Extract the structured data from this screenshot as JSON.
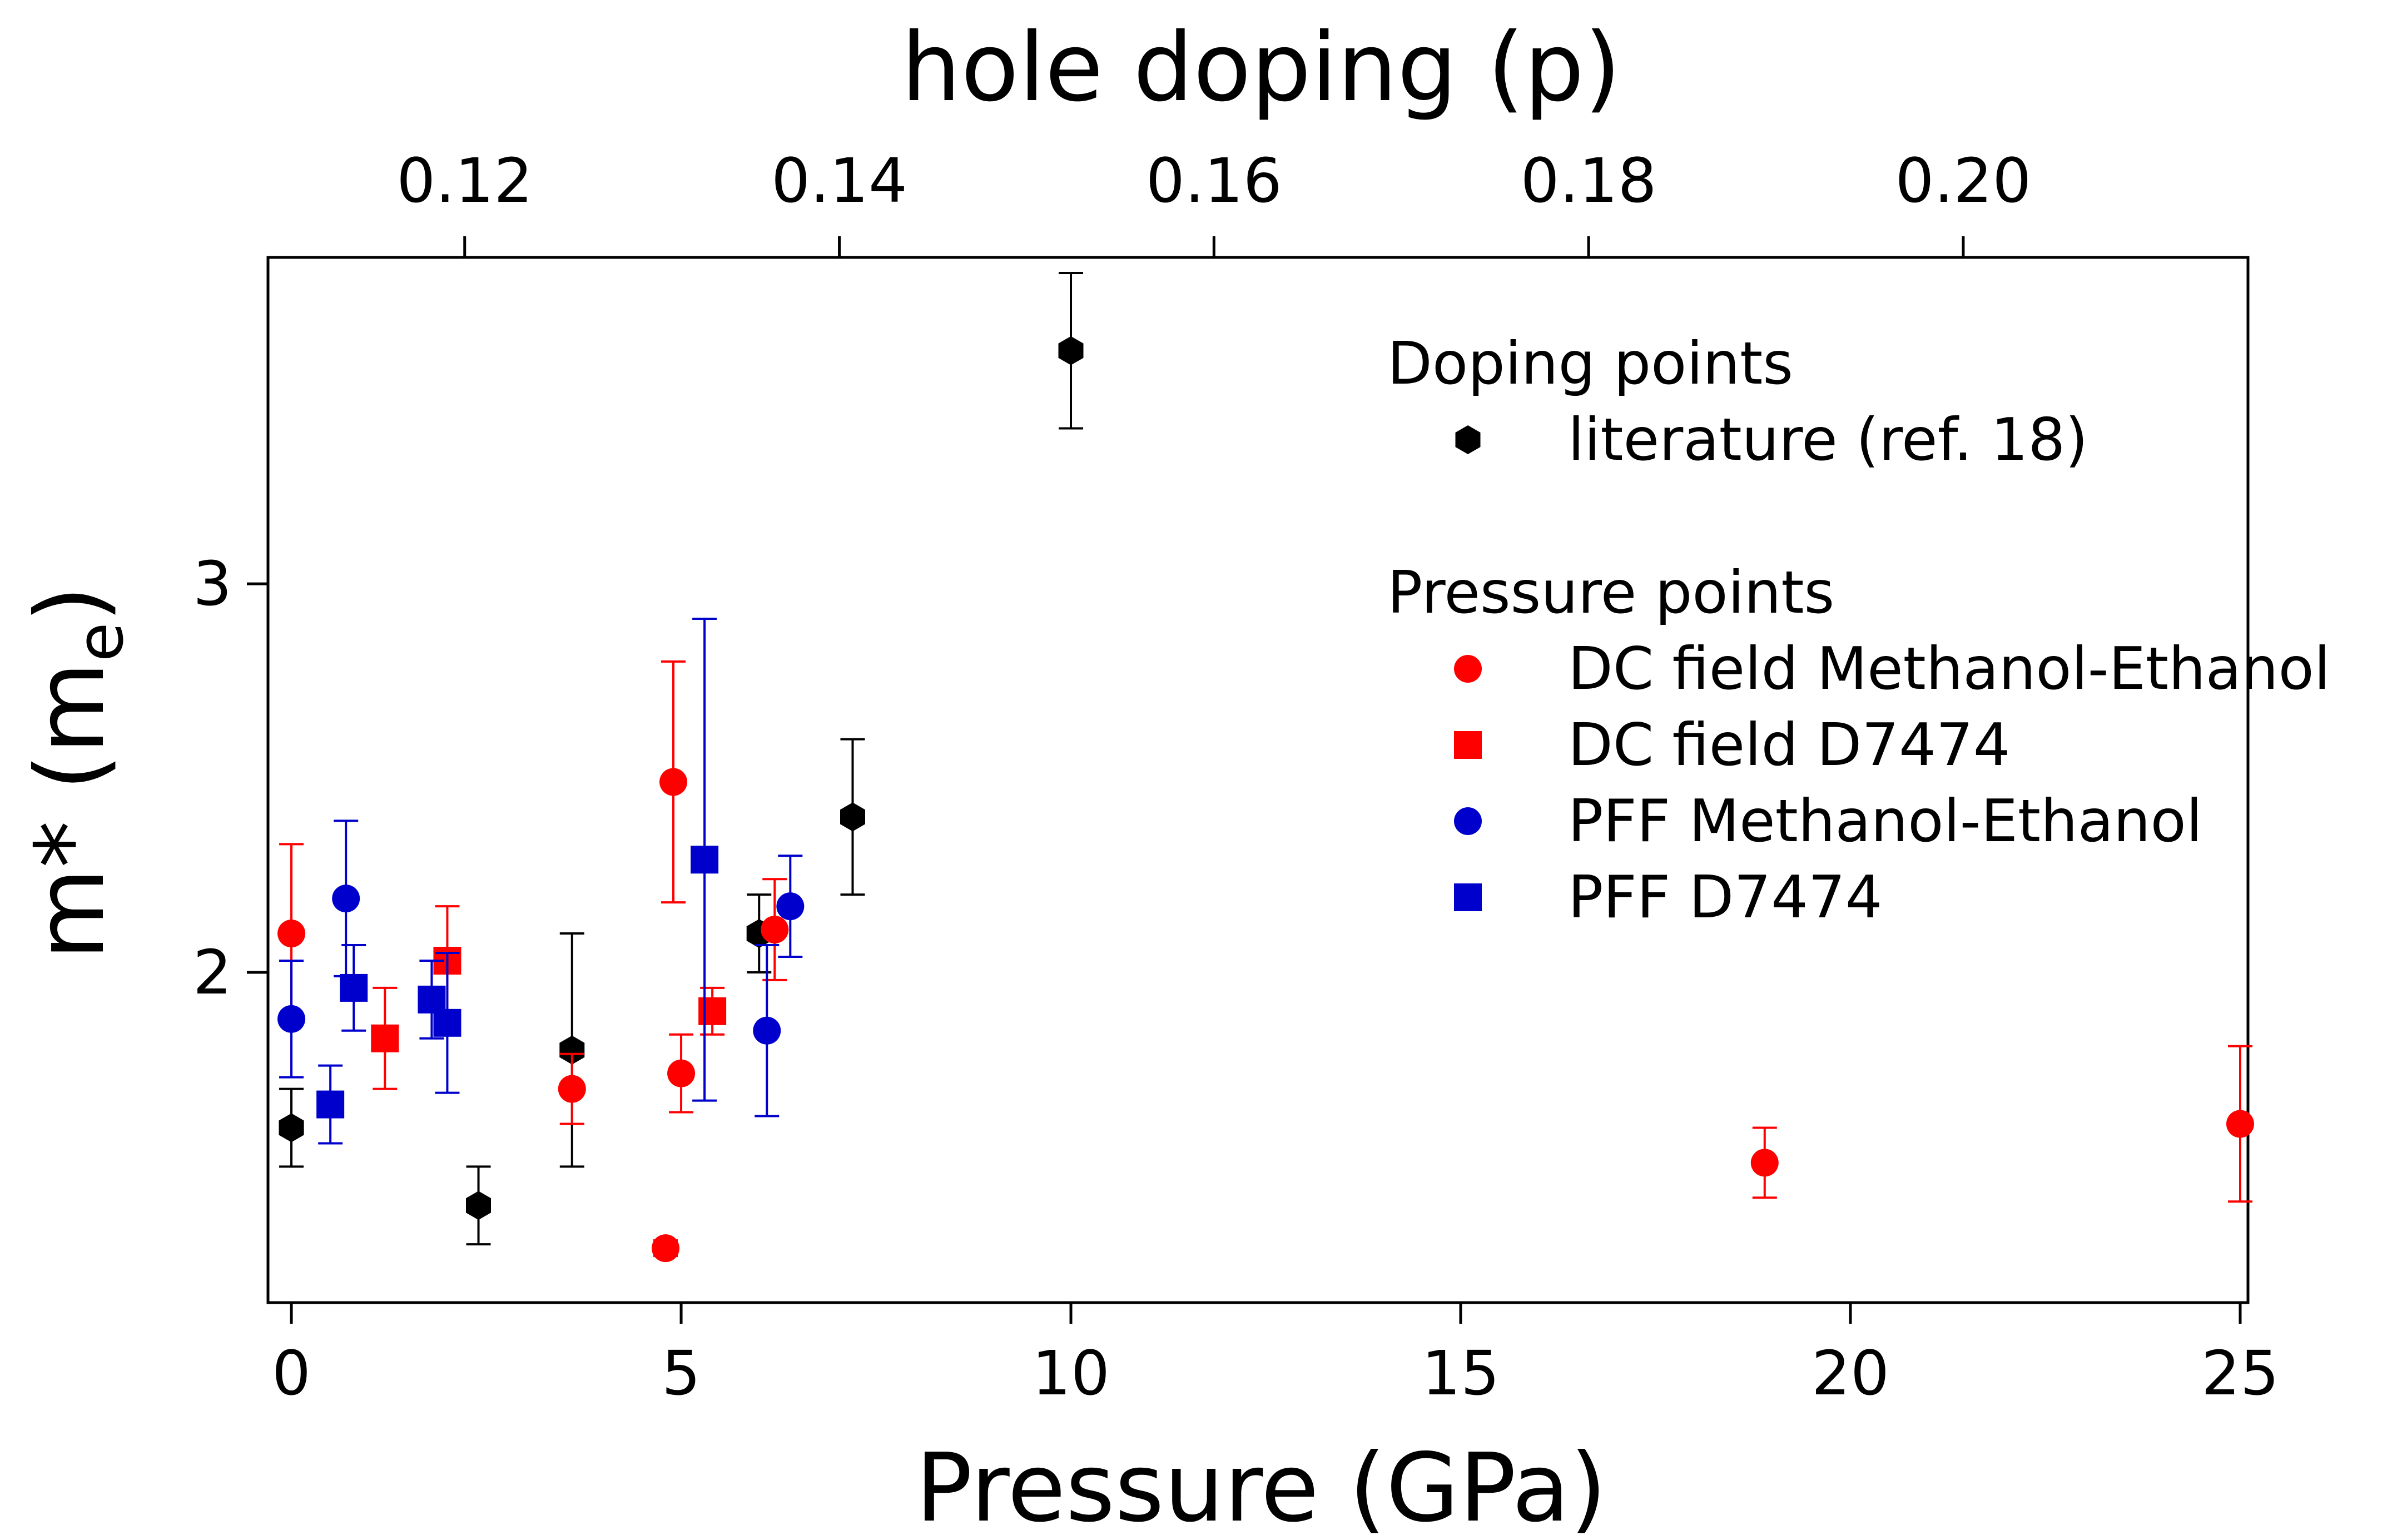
{
  "chart_data": {
    "type": "scatter",
    "title": "",
    "xlabel": "Pressure (GPa)",
    "ylabel": "m* (m",
    "ylabel_sub": "e",
    "ylabel_close": ")",
    "top_xlabel": "hole doping (p)",
    "xlim": [
      -0.3,
      25.1
    ],
    "ylim": [
      1.15,
      3.84
    ],
    "top_xlim": [
      0.1095,
      0.2152
    ],
    "x_ticks": [
      0,
      5,
      10,
      15,
      20,
      25
    ],
    "x_tick_labels": [
      "0",
      "5",
      "10",
      "15",
      "20",
      "25"
    ],
    "top_ticks": [
      0.12,
      0.14,
      0.16,
      0.18,
      0.2
    ],
    "top_tick_labels": [
      "0.12",
      "0.14",
      "0.16",
      "0.18",
      "0.20"
    ],
    "y_ticks": [
      2,
      3
    ],
    "y_tick_labels": [
      "2",
      "3"
    ],
    "grid": false,
    "legend_position": "top-right",
    "legend_groups": [
      {
        "header": "Doping points",
        "entries": [
          "literature"
        ]
      },
      {
        "header": "Pressure points",
        "entries": [
          "dc_me",
          "dc_d7474",
          "pff_me",
          "pff_d7474"
        ]
      }
    ],
    "series": [
      {
        "id": "literature",
        "name": "literature (ref. 18)",
        "marker": "hexagon",
        "color": "#000000",
        "points": [
          {
            "x": 0.0,
            "y": 1.6,
            "err": 0.1
          },
          {
            "x": 2.4,
            "y": 1.4,
            "err": 0.1
          },
          {
            "x": 3.6,
            "y": 1.8,
            "err": 0.3
          },
          {
            "x": 6.0,
            "y": 2.1,
            "err": 0.1
          },
          {
            "x": 7.2,
            "y": 2.4,
            "err": 0.2
          },
          {
            "x": 10.0,
            "y": 3.6,
            "err": 0.2
          }
        ]
      },
      {
        "id": "dc_me",
        "name": "DC field Methanol-Ethanol",
        "marker": "circle",
        "color": "#ff0000",
        "points": [
          {
            "x": 0.0,
            "y": 2.1,
            "err": 0.23
          },
          {
            "x": 3.6,
            "y": 1.7,
            "err": 0.09
          },
          {
            "x": 4.8,
            "y": 1.29,
            "err": 0.02
          },
          {
            "x": 4.9,
            "y": 2.49,
            "err": 0.31
          },
          {
            "x": 5.0,
            "y": 1.74,
            "err": 0.1
          },
          {
            "x": 6.2,
            "y": 2.11,
            "err": 0.13
          },
          {
            "x": 18.9,
            "y": 1.51,
            "err": 0.09
          },
          {
            "x": 25.0,
            "y": 1.61,
            "err": 0.2
          }
        ]
      },
      {
        "id": "dc_d7474",
        "name": "DC field D7474",
        "marker": "square",
        "color": "#ff0000",
        "points": [
          {
            "x": 1.2,
            "y": 1.83,
            "err": 0.13
          },
          {
            "x": 2.0,
            "y": 2.03,
            "err": 0.14
          },
          {
            "x": 5.4,
            "y": 1.9,
            "err": 0.06
          }
        ]
      },
      {
        "id": "pff_me",
        "name": "PFF Methanol-Ethanol",
        "marker": "circle",
        "color": "#0000cc",
        "points": [
          {
            "x": 0.0,
            "y": 1.88,
            "err": 0.15
          },
          {
            "x": 0.7,
            "y": 2.19,
            "err": 0.2
          },
          {
            "x": 6.1,
            "y": 1.85,
            "err": 0.22
          },
          {
            "x": 6.4,
            "y": 2.17,
            "err": 0.13
          }
        ]
      },
      {
        "id": "pff_d7474",
        "name": "PFF D7474",
        "marker": "square",
        "color": "#0000cc",
        "points": [
          {
            "x": 0.5,
            "y": 1.66,
            "err": 0.1
          },
          {
            "x": 0.8,
            "y": 1.96,
            "err": 0.11
          },
          {
            "x": 1.8,
            "y": 1.93,
            "err": 0.1
          },
          {
            "x": 2.0,
            "y": 1.87,
            "err": 0.18
          },
          {
            "x": 5.3,
            "y": 2.29,
            "err": 0.62
          }
        ]
      }
    ]
  }
}
